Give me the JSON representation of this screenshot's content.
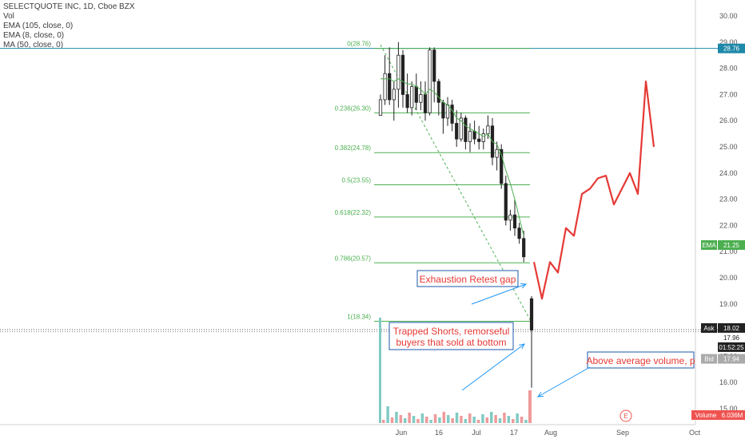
{
  "legend": {
    "symbol_line": "SELECTQUOTE INC, 1D, Cboe BZX",
    "vol": "Vol",
    "ema105": "EMA (105, close, 0)",
    "ema8": "EMA (8, close, 0)",
    "ma50": "MA (50, close, 0)"
  },
  "price_axis": {
    "ticks": [
      "30.00",
      "29.00",
      "28.00",
      "27.00",
      "26.00",
      "25.00",
      "24.00",
      "23.00",
      "22.00",
      "21.00",
      "20.00",
      "19.00",
      "18.00",
      "17.00",
      "16.00",
      "15.00"
    ],
    "ema_tag": {
      "label": "EMA",
      "value": "21.25"
    },
    "top_tag": "28.76",
    "ask_tag": {
      "label": "Ask",
      "value": "18.02"
    },
    "last_tag": "17.96",
    "timer_tag": "01:52:25",
    "bid_tag": {
      "label": "Bid",
      "value": "17.94"
    },
    "volume_tag": {
      "label": "Volume",
      "value": "6.036M"
    }
  },
  "time_axis": {
    "ticks": [
      "Jun",
      "16",
      "Jul",
      "17",
      "Aug",
      "Sep",
      "Oct"
    ]
  },
  "event_marker": "E",
  "colors": {
    "fib": "#4caf50",
    "annotation": "#e53935",
    "arrow": "#2196f3",
    "volume_up": "#80cbc4",
    "volume_down": "#ef9a9a",
    "level_line": "#1e88a8"
  },
  "chart_data": {
    "type": "candlestick",
    "title": "SELECTQUOTE INC, 1D, Cboe BZX",
    "ylim": [
      14.5,
      30.3
    ],
    "fib_levels": [
      {
        "label": "0(28.76)",
        "value": 28.76
      },
      {
        "label": "0.236(26.30)",
        "value": 26.3
      },
      {
        "label": "0.382(24.78)",
        "value": 24.78
      },
      {
        "label": "0.5(23.55)",
        "value": 23.55
      },
      {
        "label": "0.618(22.32)",
        "value": 22.32
      },
      {
        "label": "0.786(20.57)",
        "value": 20.57
      },
      {
        "label": "1(18.34)",
        "value": 18.34
      }
    ],
    "candles": [
      [
        26.2,
        27.0,
        26.2,
        26.8
      ],
      [
        26.8,
        28.5,
        26.6,
        27.8
      ],
      [
        27.8,
        28.8,
        26.6,
        26.8
      ],
      [
        26.8,
        27.5,
        26.0,
        27.2
      ],
      [
        27.2,
        29.0,
        26.5,
        28.5
      ],
      [
        28.5,
        28.7,
        26.5,
        27.0
      ],
      [
        27.0,
        27.8,
        26.3,
        26.5
      ],
      [
        26.5,
        27.5,
        26.2,
        27.3
      ],
      [
        27.3,
        27.8,
        26.4,
        26.7
      ],
      [
        26.7,
        27.5,
        26.4,
        27.0
      ],
      [
        27.0,
        27.5,
        26.0,
        26.3
      ],
      [
        26.3,
        28.8,
        26.2,
        28.7
      ],
      [
        28.7,
        28.8,
        26.7,
        27.5
      ],
      [
        27.5,
        27.6,
        26.2,
        26.7
      ],
      [
        26.7,
        26.8,
        25.5,
        26.1
      ],
      [
        26.1,
        26.9,
        25.8,
        26.6
      ],
      [
        26.6,
        26.8,
        25.6,
        25.9
      ],
      [
        25.9,
        26.4,
        25.0,
        25.3
      ],
      [
        25.3,
        26.3,
        25.2,
        26.1
      ],
      [
        26.1,
        26.2,
        24.9,
        25.2
      ],
      [
        25.2,
        25.9,
        24.8,
        25.6
      ],
      [
        25.6,
        26.0,
        25.1,
        25.3
      ],
      [
        25.3,
        25.8,
        24.9,
        25.2
      ],
      [
        25.2,
        25.7,
        24.9,
        25.5
      ],
      [
        25.5,
        26.2,
        25.3,
        25.8
      ],
      [
        25.8,
        26.1,
        24.3,
        24.6
      ],
      [
        24.6,
        25.2,
        24.1,
        24.9
      ],
      [
        24.9,
        25.1,
        23.4,
        23.6
      ],
      [
        23.6,
        23.9,
        22.0,
        22.2
      ],
      [
        22.2,
        22.6,
        21.8,
        22.4
      ],
      [
        22.4,
        23.0,
        21.6,
        21.9
      ],
      [
        21.9,
        22.1,
        21.3,
        21.5
      ],
      [
        21.5,
        21.8,
        20.6,
        20.8
      ]
    ],
    "gap_candle": [
      19.2,
      19.3,
      15.8,
      18.0
    ],
    "projection": [
      [
        20.6,
        19.2
      ],
      [
        20.6,
        20.2
      ],
      [
        21.9,
        21.6
      ],
      [
        23.2,
        23.4
      ],
      [
        23.8,
        23.9
      ],
      [
        22.8,
        23.4
      ],
      [
        24.0,
        23.2
      ],
      [
        27.5,
        25.0
      ]
    ],
    "volume_last": 6.036,
    "annotations": [
      {
        "text": "Exhaustion Retest gap"
      },
      {
        "text": "Trapped Shorts, remorseful"
      },
      {
        "text": "buyers that sold at bottom"
      },
      {
        "text": "Above average volume, p"
      }
    ]
  }
}
